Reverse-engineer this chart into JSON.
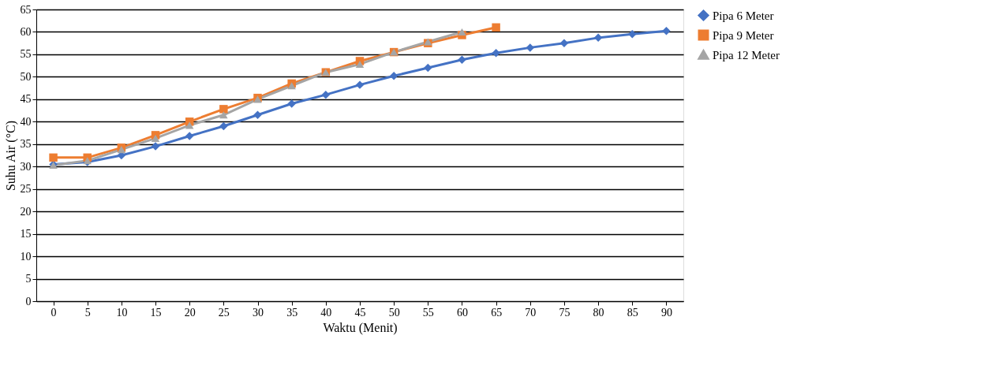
{
  "chart_data": {
    "type": "line",
    "xlabel": "Waktu (Menit)",
    "ylabel": "Suhu Air (°C)",
    "categories": [
      "0",
      "5",
      "10",
      "15",
      "20",
      "25",
      "30",
      "35",
      "40",
      "45",
      "50",
      "55",
      "60",
      "65",
      "70",
      "75",
      "80",
      "85",
      "90"
    ],
    "series": [
      {
        "name": "Pipa 6 Meter",
        "color": "#4472c4",
        "marker": "diamond",
        "values": [
          30.5,
          31,
          32.5,
          34.5,
          36.8,
          39,
          41.5,
          44,
          46,
          48.2,
          50.2,
          52,
          53.8,
          55.3,
          56.5,
          57.5,
          58.7,
          59.5,
          60.2
        ]
      },
      {
        "name": "Pipa 9 Meter",
        "color": "#ed7d31",
        "marker": "square",
        "values": [
          32,
          32,
          34.2,
          37,
          40,
          42.8,
          45.3,
          48.5,
          51,
          53.5,
          55.5,
          57.5,
          59.3,
          61,
          null,
          null,
          null,
          null,
          null
        ]
      },
      {
        "name": "Pipa 12 Meter",
        "color": "#a5a5a5",
        "marker": "triangle",
        "values": [
          30.3,
          31.3,
          33.8,
          36.3,
          39.2,
          41.5,
          45,
          48,
          51,
          52.8,
          55.5,
          57.8,
          60,
          null,
          null,
          null,
          null,
          null,
          null
        ]
      }
    ],
    "ylim": [
      0,
      65
    ],
    "yticks": [
      0,
      5,
      10,
      15,
      20,
      25,
      30,
      35,
      40,
      45,
      50,
      55,
      60,
      65
    ],
    "grid": "y",
    "legend": "right",
    "line_style": "solid"
  }
}
